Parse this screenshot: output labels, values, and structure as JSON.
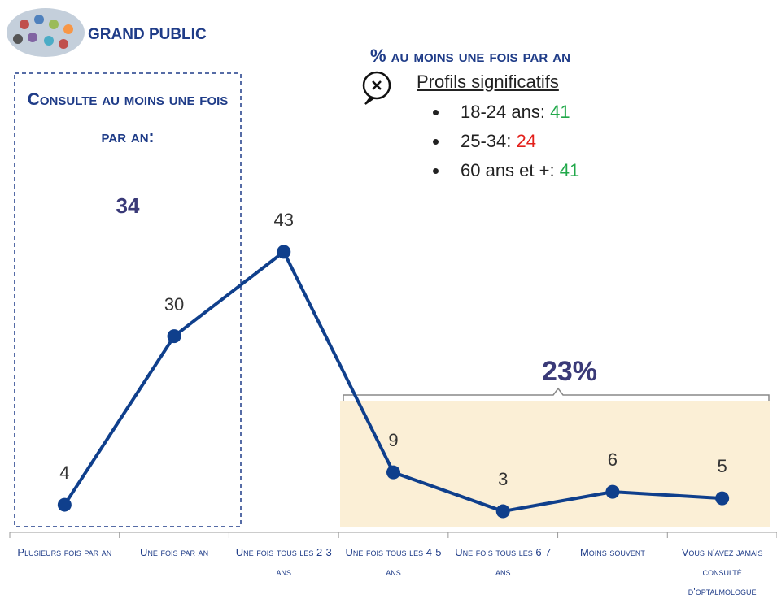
{
  "chart_data": {
    "type": "line",
    "header": "GRAND PUBLIC",
    "box_title": "Consulte au moins une fois par an:",
    "box_value": "34",
    "subtitle": "% au moins une fois par an",
    "profiles_title": "Profils significatifs",
    "profiles": [
      {
        "label": "18-24 ans: ",
        "value": "41",
        "color": "#21a84a"
      },
      {
        "label": "25-34: ",
        "value": "24",
        "color": "#e3201b"
      },
      {
        "label": "60 ans et +: ",
        "value": "41",
        "color": "#21a84a"
      }
    ],
    "bracket_label": "23%",
    "categories": [
      "Plusieurs fois par an",
      "Une fois par an",
      "Une fois tous les 2-3 ans",
      "Une fois tous les 4-5 ans",
      "Une fois tous les 6-7 ans",
      "Moins souvent",
      "Vous n'avez jamais consulté d'optalmologue"
    ],
    "values": [
      4,
      30,
      43,
      9,
      3,
      6,
      5
    ],
    "color": "#0f3f8c"
  }
}
